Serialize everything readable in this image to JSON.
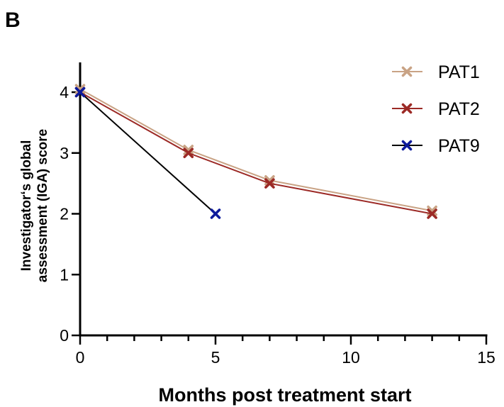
{
  "panel_label": "B",
  "chart_data": {
    "type": "line",
    "xlabel": "Months post treatment start",
    "ylabel_lines": [
      "Investigator‘s global",
      "assessment (IGA) score"
    ],
    "xlim": [
      0,
      15
    ],
    "ylim": [
      0,
      4
    ],
    "x_ticks": [
      0,
      5,
      10,
      15
    ],
    "x_tick_labels": [
      "0",
      "5",
      "10",
      "15"
    ],
    "x_minor_step": 1,
    "y_ticks": [
      0,
      1,
      2,
      3,
      4
    ],
    "y_tick_labels": [
      "0",
      "1",
      "2",
      "3",
      "4"
    ],
    "grid": false,
    "legend_position": "top-right",
    "marker": "x",
    "series": [
      {
        "name": "PAT1",
        "color": "#c9a385",
        "x": [
          0,
          4,
          7,
          13
        ],
        "y": [
          4.05,
          3.05,
          2.55,
          2.05
        ]
      },
      {
        "name": "PAT2",
        "color": "#9c2a26",
        "x": [
          0,
          4,
          7,
          13
        ],
        "y": [
          4.0,
          3.0,
          2.5,
          2.0
        ]
      },
      {
        "name": "PAT9",
        "color": "#0d1a9c",
        "line_color": "#000000",
        "x": [
          0,
          5
        ],
        "y": [
          4.0,
          2.0
        ]
      }
    ]
  }
}
